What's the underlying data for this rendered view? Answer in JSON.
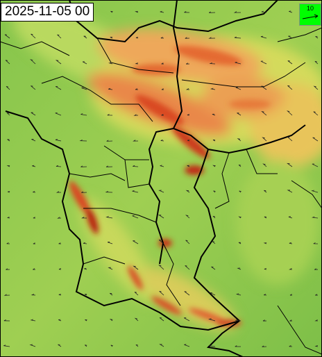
{
  "header": {
    "timestamp": "2025-11-05 00"
  },
  "legend": {
    "scale_label": "10"
  }
}
